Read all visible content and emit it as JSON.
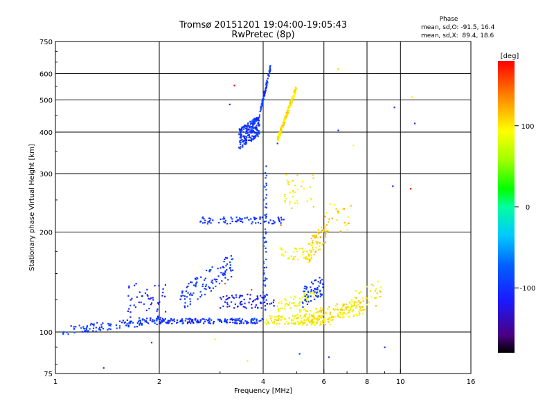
{
  "chart_data": {
    "type": "scatter",
    "title": "Tromsø 20151201 19:04:00-19:05:43",
    "subtitle": "RwPretec (8p)",
    "xlabel": "Frequency [MHz]",
    "ylabel": "Stationary phase Virtual Height [km]",
    "x_scale": "log",
    "y_scale": "log",
    "xlim": [
      1,
      16
    ],
    "ylim": [
      75,
      750
    ],
    "x_ticks": [
      1,
      2,
      4,
      6,
      8,
      10,
      16
    ],
    "y_ticks": [
      75,
      100,
      200,
      300,
      400,
      500,
      600,
      750
    ],
    "x_grid": [
      2,
      4,
      6,
      8,
      10
    ],
    "y_grid": [
      100,
      200,
      300,
      400,
      500,
      600
    ],
    "grid": true,
    "stats": {
      "header": "Phase",
      "line_o": "mean, sd,O: -91.5, 16.4",
      "line_x": "mean, sd,X:  89.4, 18.6"
    },
    "colorbar": {
      "label": "[deg]",
      "range": [
        -180,
        180
      ],
      "ticks": [
        100,
        0,
        -100
      ]
    },
    "clusters": [
      {
        "x0": 1.05,
        "x1": 2.0,
        "y0": 98,
        "y1": 112,
        "phase": -95,
        "n": 120,
        "slope": 0.55
      },
      {
        "x0": 2.0,
        "x1": 4.0,
        "y0": 106,
        "y1": 110,
        "phase": -100,
        "n": 170,
        "slope": 0.0
      },
      {
        "x0": 1.6,
        "x1": 2.1,
        "y0": 110,
        "y1": 140,
        "phase": -110,
        "n": 50,
        "slope": 0.0
      },
      {
        "x0": 2.3,
        "x1": 3.3,
        "y0": 115,
        "y1": 175,
        "phase": -95,
        "n": 110,
        "slope": 0.6
      },
      {
        "x0": 3.0,
        "x1": 4.3,
        "y0": 118,
        "y1": 130,
        "phase": -115,
        "n": 80,
        "slope": 0.0
      },
      {
        "x0": 2.6,
        "x1": 4.6,
        "y0": 212,
        "y1": 222,
        "phase": -100,
        "n": 80,
        "slope": 0.0
      },
      {
        "x0": 4.0,
        "x1": 4.1,
        "y0": 115,
        "y1": 320,
        "phase": -90,
        "n": 60,
        "slope": 0.0
      },
      {
        "x0": 3.4,
        "x1": 3.9,
        "y0": 355,
        "y1": 450,
        "phase": -100,
        "n": 220,
        "slope": 0.4
      },
      {
        "x0": 3.9,
        "x1": 4.2,
        "y0": 440,
        "y1": 640,
        "phase": -95,
        "n": 70,
        "slope": 0.9
      },
      {
        "x0": 4.4,
        "x1": 5.0,
        "y0": 370,
        "y1": 560,
        "phase": 100,
        "n": 170,
        "slope": 0.9
      },
      {
        "x0": 4.0,
        "x1": 6.4,
        "y0": 105,
        "y1": 112,
        "phase": 95,
        "n": 120,
        "slope": 0.0
      },
      {
        "x0": 5.0,
        "x1": 7.8,
        "y0": 105,
        "y1": 125,
        "phase": 100,
        "n": 160,
        "slope": 0.4
      },
      {
        "x0": 4.4,
        "x1": 5.8,
        "y0": 115,
        "y1": 135,
        "phase": 90,
        "n": 60,
        "slope": 0.5
      },
      {
        "x0": 5.4,
        "x1": 6.1,
        "y0": 160,
        "y1": 220,
        "phase": 110,
        "n": 60,
        "slope": 0.5
      },
      {
        "x0": 4.5,
        "x1": 5.6,
        "y0": 165,
        "y1": 180,
        "phase": 95,
        "n": 40,
        "slope": 0.0
      },
      {
        "x0": 4.6,
        "x1": 5.6,
        "y0": 230,
        "y1": 300,
        "phase": 95,
        "n": 35,
        "slope": 0.0
      },
      {
        "x0": 5.2,
        "x1": 6.0,
        "y0": 118,
        "y1": 150,
        "phase": -100,
        "n": 60,
        "slope": 0.4
      },
      {
        "x0": 6.0,
        "x1": 7.2,
        "y0": 200,
        "y1": 245,
        "phase": 110,
        "n": 25,
        "slope": 0.0
      },
      {
        "x0": 7.2,
        "x1": 8.8,
        "y0": 112,
        "y1": 145,
        "phase": 100,
        "n": 40,
        "slope": 0.3
      }
    ],
    "scatter_points": [
      {
        "x": 1.38,
        "y": 78,
        "phase": -100
      },
      {
        "x": 3.6,
        "y": 82,
        "phase": 100
      },
      {
        "x": 6.6,
        "y": 620,
        "phase": 110
      },
      {
        "x": 6.6,
        "y": 405,
        "phase": -100
      },
      {
        "x": 9.6,
        "y": 475,
        "phase": -100
      },
      {
        "x": 11.0,
        "y": 425,
        "phase": -100
      },
      {
        "x": 10.8,
        "y": 510,
        "phase": 100
      },
      {
        "x": 10.7,
        "y": 270,
        "phase": 170
      },
      {
        "x": 9.5,
        "y": 275,
        "phase": -100
      },
      {
        "x": 7.3,
        "y": 365,
        "phase": 95
      },
      {
        "x": 4.4,
        "y": 370,
        "phase": -100
      },
      {
        "x": 3.3,
        "y": 553,
        "phase": 180
      },
      {
        "x": 3.2,
        "y": 485,
        "phase": -100
      },
      {
        "x": 9.0,
        "y": 90,
        "phase": -100
      },
      {
        "x": 6.2,
        "y": 84,
        "phase": -100
      },
      {
        "x": 5.1,
        "y": 86,
        "phase": -100
      },
      {
        "x": 2.9,
        "y": 95,
        "phase": 100
      },
      {
        "x": 1.9,
        "y": 93,
        "phase": -100
      },
      {
        "x": 3.7,
        "y": 134,
        "phase": 160
      },
      {
        "x": 4.5,
        "y": 210,
        "phase": 150
      },
      {
        "x": 3.1,
        "y": 140,
        "phase": 150
      }
    ]
  }
}
